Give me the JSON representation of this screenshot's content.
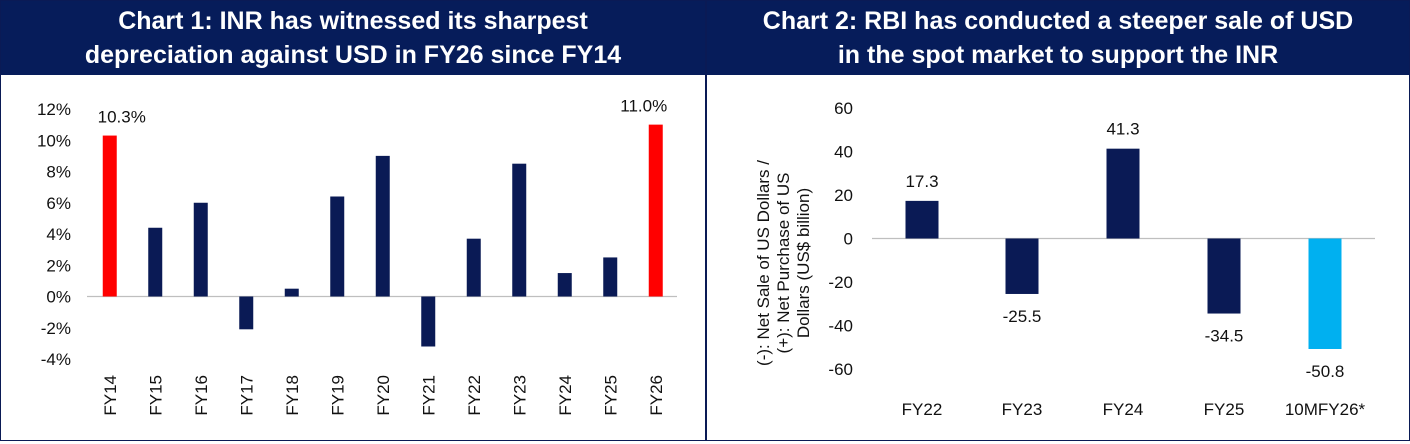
{
  "chart1": {
    "title_line1": "Chart 1: INR has witnessed its sharpest",
    "title_line2": "depreciation against USD in FY26 since FY14"
  },
  "chart2": {
    "title_line1": "Chart 2: RBI has conducted a steeper sale of USD",
    "title_line2": "in the spot market to support the INR",
    "ylabel_line1": "(-): Net Sale of US Dollars /",
    "ylabel_line2": "(+): Net Purchase of US",
    "ylabel_line3": "Dollars (US$ billion)"
  },
  "colors": {
    "navy": "#0a1a55",
    "red": "#ff0000",
    "light_blue": "#00b0f0",
    "header_bg": "#061c5a"
  },
  "chart_data": [
    {
      "type": "bar",
      "title": "Chart 1: INR has witnessed its sharpest depreciation against USD in FY26 since FY14",
      "categories": [
        "FY14",
        "FY15",
        "FY16",
        "FY17",
        "FY18",
        "FY19",
        "FY20",
        "FY21",
        "FY22",
        "FY23",
        "FY24",
        "FY25",
        "FY26"
      ],
      "values": [
        10.3,
        4.4,
        6.0,
        -2.1,
        0.5,
        6.4,
        9.0,
        -3.2,
        3.7,
        8.5,
        1.5,
        2.5,
        11.0
      ],
      "highlight": [
        "FY14",
        "FY26"
      ],
      "data_labels": {
        "FY14": "10.3%",
        "FY26": "11.0%"
      },
      "yticks": [
        "12%",
        "10%",
        "8%",
        "6%",
        "4%",
        "2%",
        "0%",
        "-2%",
        "-4%"
      ],
      "ylim": [
        -4,
        12
      ],
      "xlabel": "",
      "ylabel": ""
    },
    {
      "type": "bar",
      "title": "Chart 2: RBI has conducted a steeper sale of USD in the spot market to support the INR",
      "categories": [
        "FY22",
        "FY23",
        "FY24",
        "FY25",
        "10MFY26*"
      ],
      "values": [
        17.3,
        -25.5,
        41.3,
        -34.5,
        -50.8
      ],
      "data_labels": [
        "17.3",
        "-25.5",
        "41.3",
        "-34.5",
        "-50.8"
      ],
      "highlight": [
        "10MFY26*"
      ],
      "yticks": [
        "60",
        "40",
        "20",
        "0",
        "-20",
        "-40",
        "-60"
      ],
      "ylim": [
        -60,
        60
      ],
      "xlabel": "",
      "ylabel": "(-): Net Sale of US Dollars / (+): Net Purchase of US Dollars (US$ billion)"
    }
  ]
}
